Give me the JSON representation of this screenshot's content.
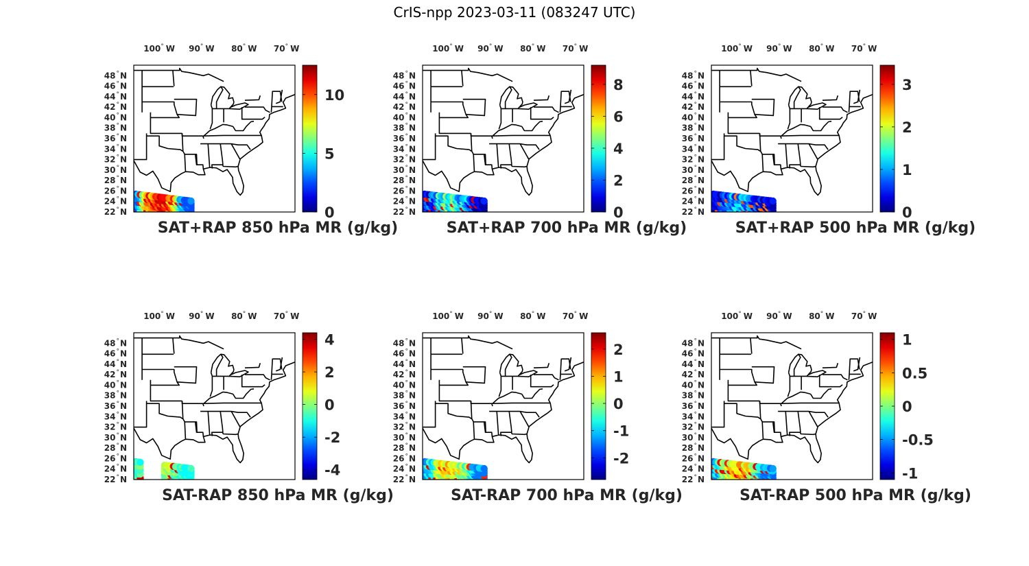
{
  "figure": {
    "title": "CrIS-npp 2023-03-11 (083247 UTC)"
  },
  "map": {
    "lon_ticks": [
      {
        "deg": "100",
        "hemi": "W",
        "lon": -100
      },
      {
        "deg": "90",
        "hemi": "W",
        "lon": -90
      },
      {
        "deg": "80",
        "hemi": "W",
        "lon": -80
      },
      {
        "deg": "70",
        "hemi": "W",
        "lon": -70
      }
    ],
    "lat_ticks": [
      {
        "deg": "48",
        "hemi": "N",
        "lat": 48
      },
      {
        "deg": "46",
        "hemi": "N",
        "lat": 46
      },
      {
        "deg": "44",
        "hemi": "N",
        "lat": 44
      },
      {
        "deg": "42",
        "hemi": "N",
        "lat": 42
      },
      {
        "deg": "40",
        "hemi": "N",
        "lat": 40
      },
      {
        "deg": "38",
        "hemi": "N",
        "lat": 38
      },
      {
        "deg": "36",
        "hemi": "N",
        "lat": 36
      },
      {
        "deg": "34",
        "hemi": "N",
        "lat": 34
      },
      {
        "deg": "32",
        "hemi": "N",
        "lat": 32
      },
      {
        "deg": "30",
        "hemi": "N",
        "lat": 30
      },
      {
        "deg": "28",
        "hemi": "N",
        "lat": 28
      },
      {
        "deg": "26",
        "hemi": "N",
        "lat": 26
      },
      {
        "deg": "24",
        "hemi": "N",
        "lat": 24
      },
      {
        "deg": "22",
        "hemi": "N",
        "lat": 22
      }
    ],
    "lon_range": [
      -106,
      -68
    ],
    "lat_range": [
      22,
      50
    ],
    "colormap": "jet",
    "coast_color": "#000000"
  },
  "panels": [
    {
      "title": "SAT+RAP 850 hPa MR (g/kg)",
      "colorbar": {
        "range": [
          0,
          12.5
        ],
        "ticks": [
          "0",
          "5",
          "10"
        ]
      },
      "swath": {
        "lon_range": [
          -105.5,
          -92.5
        ],
        "lat_range": [
          22.3,
          25.4
        ],
        "value_min": 2.5,
        "value_max": 11.5,
        "center_value": 11
      }
    },
    {
      "title": "SAT+RAP 700 hPa MR (g/kg)",
      "colorbar": {
        "range": [
          0,
          9.2
        ],
        "ticks": [
          "0",
          "2",
          "4",
          "6",
          "8"
        ]
      },
      "swath": {
        "lon_range": [
          -105.5,
          -91.5
        ],
        "lat_range": [
          22.3,
          25.4
        ],
        "value_min": 0.3,
        "value_max": 8.5,
        "center_value": 4
      }
    },
    {
      "title": "SAT+RAP 500 hPa MR (g/kg)",
      "colorbar": {
        "range": [
          0,
          3.45
        ],
        "ticks": [
          "0",
          "1",
          "2",
          "3"
        ]
      },
      "swath": {
        "lon_range": [
          -105.5,
          -91.5
        ],
        "lat_range": [
          22.3,
          25.4
        ],
        "value_min": 0.1,
        "value_max": 2.8,
        "center_value": 1
      }
    },
    {
      "title": "SAT-RAP 850 hPa MR (g/kg)",
      "colorbar": {
        "range": [
          -4.6,
          4.4
        ],
        "ticks": [
          "-4",
          "-2",
          "0",
          "2",
          "4"
        ]
      },
      "swath": {
        "lon_range": [
          -105.5,
          -92.5
        ],
        "lat_range": [
          22.3,
          25.4
        ],
        "value_min": -1.2,
        "value_max": 3.8,
        "center_value": 0.2,
        "gap_lon": [
          -104,
          -99
        ]
      }
    },
    {
      "title": "SAT-RAP 700 hPa MR (g/kg)",
      "colorbar": {
        "range": [
          -2.8,
          2.6
        ],
        "ticks": [
          "-2",
          "-1",
          "0",
          "1",
          "2"
        ]
      },
      "swath": {
        "lon_range": [
          -105.5,
          -91.5
        ],
        "lat_range": [
          22.3,
          25.4
        ],
        "value_min": -1.5,
        "value_max": 2.0,
        "center_value": 0.6
      }
    },
    {
      "title": "SAT-RAP 500 hPa MR (g/kg)",
      "colorbar": {
        "range": [
          -1.1,
          1.1
        ],
        "ticks": [
          "-1",
          "-0.5",
          "0",
          "0.5",
          "1"
        ]
      },
      "swath": {
        "lon_range": [
          -105.5,
          -91.5
        ],
        "lat_range": [
          22.3,
          25.4
        ],
        "value_min": -0.6,
        "value_max": 0.9,
        "center_value": 0.4
      }
    }
  ]
}
